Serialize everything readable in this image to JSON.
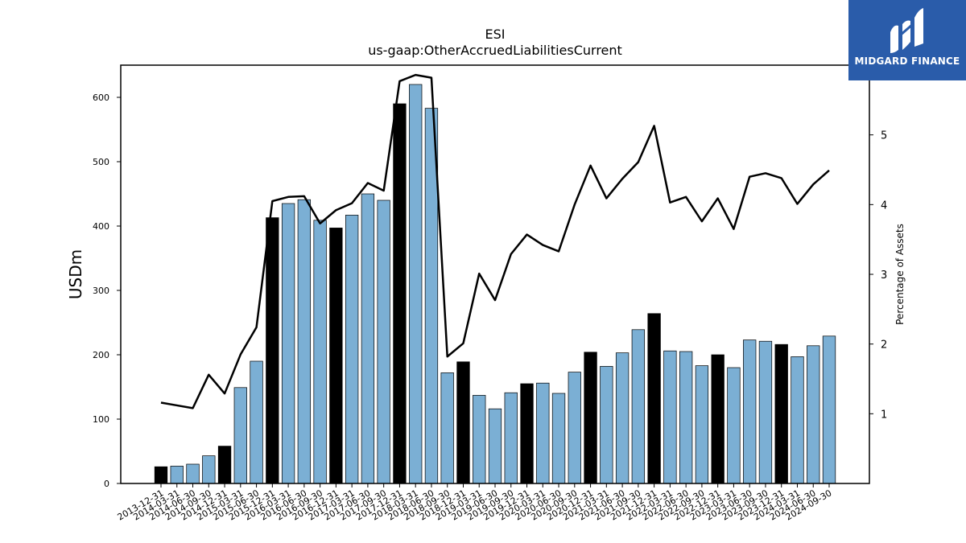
{
  "chart_data": {
    "type": "bar",
    "title": "ESI",
    "subtitle": "us-gaap:OtherAccruedLiabilitiesCurrent",
    "ylabel": "USDm",
    "y2label": "Percentage of Assets",
    "ylim": [
      0,
      650
    ],
    "y2lim": [
      0.0,
      6.0
    ],
    "yticks": [
      0,
      100,
      200,
      300,
      400,
      500,
      600
    ],
    "y2ticks": [
      1,
      2,
      3,
      4,
      5
    ],
    "colors": {
      "annual": "#000000",
      "quarterly": "#7bafd4",
      "line": "#000000"
    },
    "categories": [
      "2013-12-31",
      "2014-03-31",
      "2014-06-30",
      "2014-09-30",
      "2014-12-31",
      "2015-03-31",
      "2015-06-30",
      "2015-12-31",
      "2016-03-31",
      "2016-06-30",
      "2016-09-30",
      "2016-12-31",
      "2017-03-31",
      "2017-06-30",
      "2017-09-30",
      "2017-12-31",
      "2018-03-31",
      "2018-06-30",
      "2018-09-30",
      "2018-12-31",
      "2019-03-31",
      "2019-06-30",
      "2019-09-30",
      "2019-12-31",
      "2020-03-31",
      "2020-06-30",
      "2020-09-30",
      "2020-12-31",
      "2021-03-31",
      "2021-06-30",
      "2021-09-30",
      "2021-12-31",
      "2022-03-31",
      "2022-06-30",
      "2022-09-30",
      "2022-12-31",
      "2023-03-31",
      "2023-06-30",
      "2023-09-30",
      "2023-12-31",
      "2024-03-31",
      "2024-06-30",
      "2024-09-30"
    ],
    "series": [
      {
        "values": [
          26,
          27,
          30,
          43,
          58,
          149,
          190,
          413,
          435,
          441,
          409,
          397,
          417,
          450,
          440,
          590,
          620,
          583,
          172,
          189,
          137,
          116,
          141,
          155,
          156,
          140,
          173,
          204,
          182,
          203,
          239,
          264,
          206,
          205,
          183,
          200,
          180,
          223,
          221,
          216,
          197,
          214,
          229
        ],
        "annual": [
          true,
          false,
          false,
          false,
          true,
          false,
          false,
          true,
          false,
          false,
          false,
          true,
          false,
          false,
          false,
          true,
          false,
          false,
          false,
          true,
          false,
          false,
          false,
          true,
          false,
          false,
          false,
          true,
          false,
          false,
          false,
          true,
          false,
          false,
          false,
          true,
          false,
          false,
          false,
          true,
          false,
          false,
          false
        ]
      },
      {
        "name": "Percentage of Assets",
        "values": [
          1.16,
          1.12,
          1.08,
          1.56,
          1.29,
          1.85,
          2.24,
          4.05,
          4.11,
          4.12,
          3.73,
          3.92,
          4.02,
          4.31,
          4.2,
          5.77,
          5.86,
          5.82,
          1.82,
          2.01,
          3.01,
          2.63,
          3.29,
          3.57,
          3.42,
          3.33,
          4.0,
          4.56,
          4.09,
          4.37,
          4.61,
          5.13,
          4.03,
          4.11,
          3.76,
          4.09,
          3.65,
          4.4,
          4.45,
          4.38,
          4.01,
          4.29,
          4.49
        ]
      }
    ]
  },
  "logo": {
    "name": "midgard-logo",
    "text": "MIDGARD FINANCE"
  }
}
